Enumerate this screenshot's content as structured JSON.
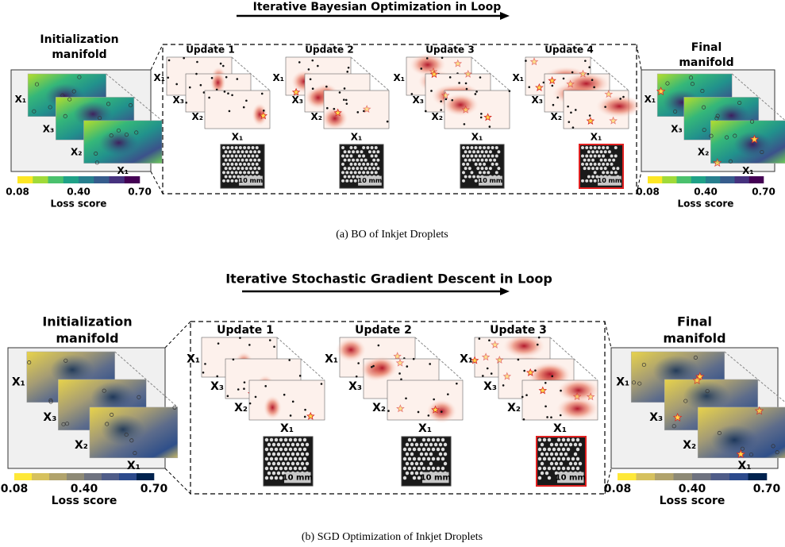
{
  "axis_labels": [
    "X₁",
    "X₂",
    "X₃"
  ],
  "figure_a": {
    "title": "Iterative Bayesian Optimization in Loop",
    "initial": [
      "Initialization",
      "manifold"
    ],
    "updates": [
      "Update 1",
      "Update 2",
      "Update 3",
      "Update 4"
    ],
    "final": [
      "Final",
      "manifold"
    ],
    "colorbar": {
      "ticks": [
        "0.08",
        "0.40",
        "0.70"
      ],
      "label": "Loss score"
    },
    "scale_bar": "10 mm",
    "caption": "(a)  BO of Inkjet Droplets"
  },
  "figure_b": {
    "title": "Iterative Stochastic Gradient Descent in Loop",
    "initial": [
      "Initialization",
      "manifold"
    ],
    "updates": [
      "Update 1",
      "Update 2",
      "Update 3"
    ],
    "final": [
      "Final",
      "manifold"
    ],
    "colorbar": {
      "ticks": [
        "0.08",
        "0.40",
        "0.70"
      ],
      "label": "Loss score"
    },
    "scale_bar": "10 mm",
    "caption": "(b)  SGD Optimization of Inkjet Droplets"
  }
}
